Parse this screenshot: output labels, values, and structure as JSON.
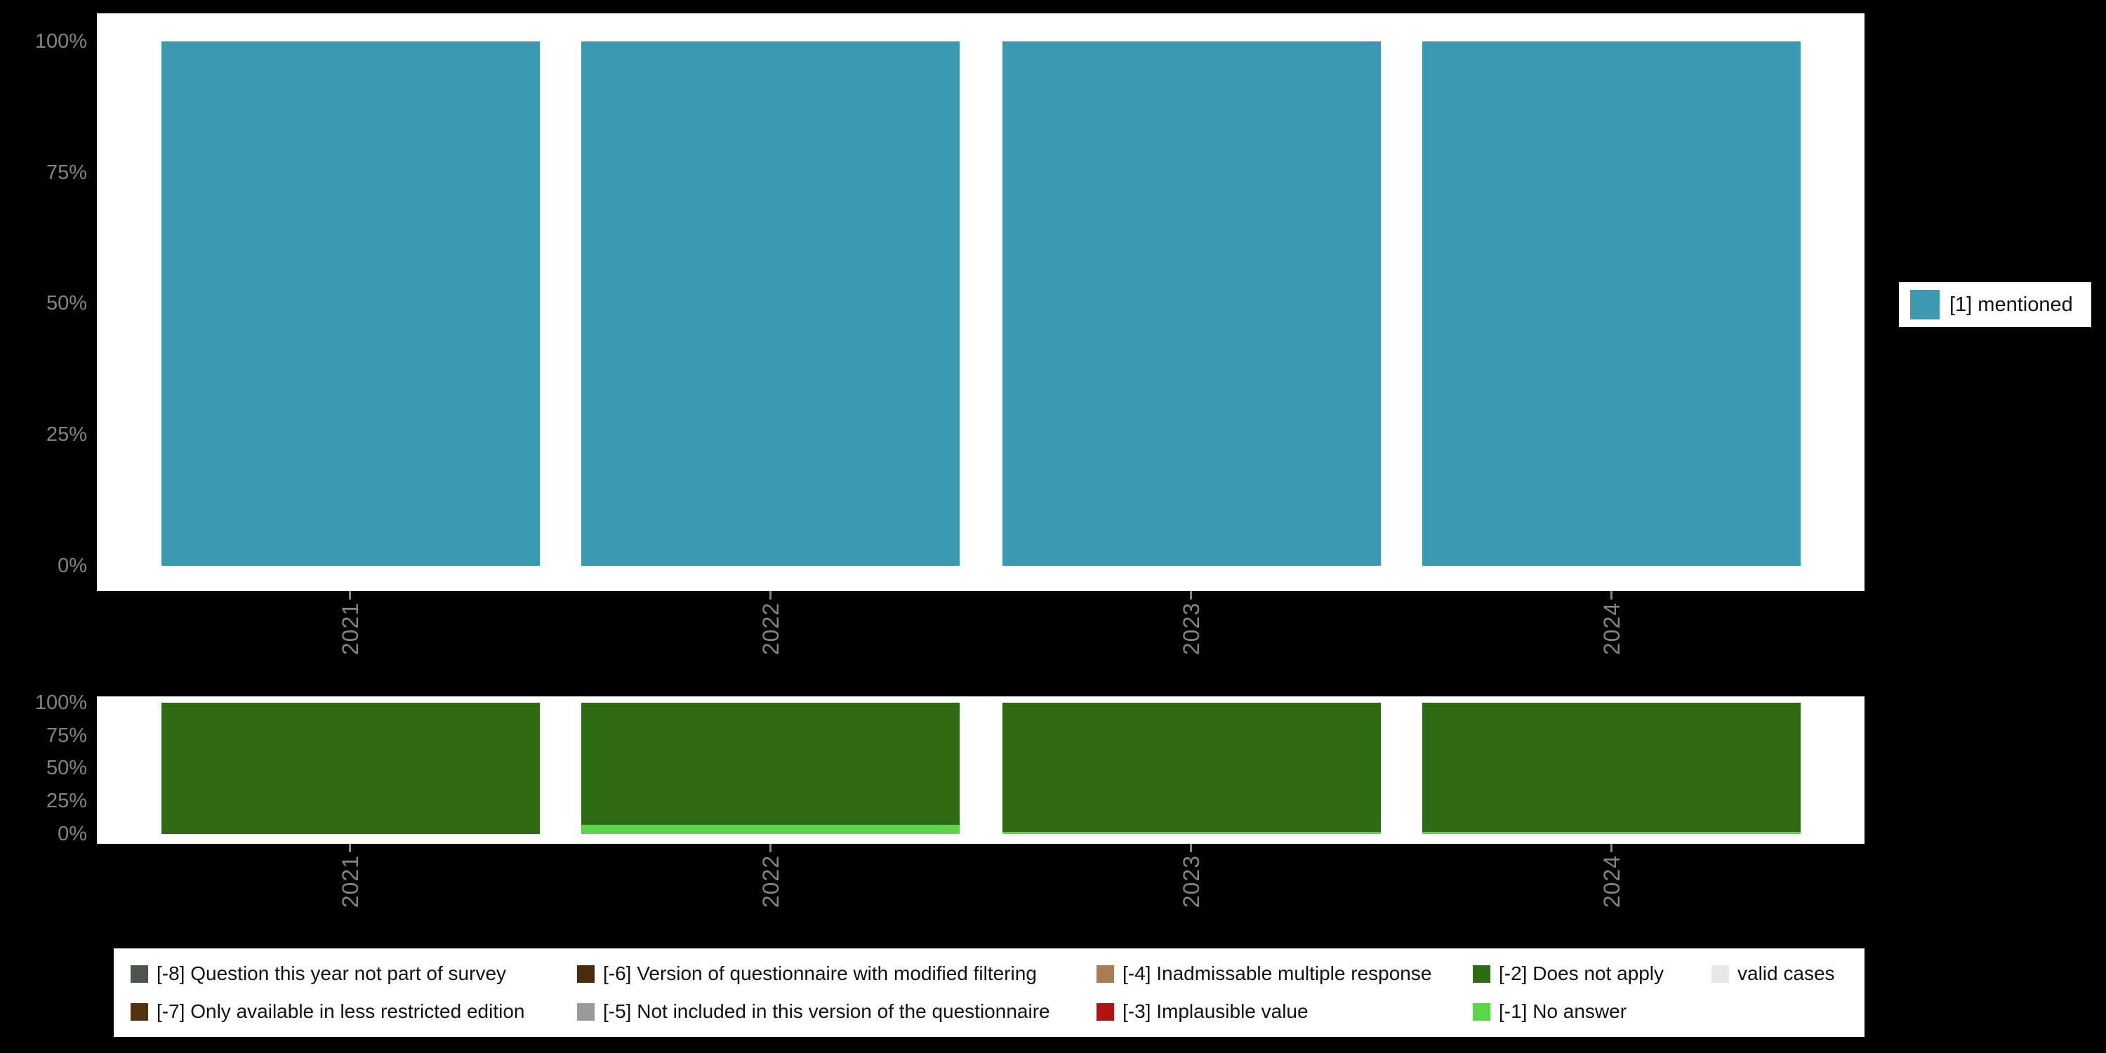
{
  "colors": {
    "page_background": "#000000",
    "panel_background": "#ffffff",
    "axis_text": "#848484",
    "legend_text": "#111111"
  },
  "chart_data": [
    {
      "type": "bar",
      "stacked": true,
      "title": "",
      "categories": [
        "2021",
        "2022",
        "2023",
        "2024"
      ],
      "series": [
        {
          "name": "[1] mentioned",
          "color": "#3b9ab1",
          "values": [
            100,
            100,
            100,
            100
          ]
        }
      ],
      "y_ticks": [
        "100%",
        "75%",
        "50%",
        "25%",
        "0%"
      ],
      "ylim": [
        0,
        100
      ],
      "grid": false,
      "legend_position": "right"
    },
    {
      "type": "bar",
      "stacked": true,
      "title": "",
      "categories": [
        "2021",
        "2022",
        "2023",
        "2024"
      ],
      "series": [
        {
          "name": "[-1] No answer",
          "color": "#5dd34b",
          "values": [
            0,
            7,
            1.5,
            1.5
          ]
        },
        {
          "name": "[-2] Does not apply",
          "color": "#2d6c12",
          "values": [
            100,
            93,
            98.5,
            98.5
          ]
        }
      ],
      "y_ticks": [
        "100%",
        "75%",
        "50%",
        "25%",
        "0%"
      ],
      "ylim": [
        0,
        100
      ],
      "grid": false,
      "legend_position": "bottom"
    }
  ],
  "top_legend": {
    "label": "[1] mentioned",
    "color": "#3b9ab1"
  },
  "missing_legend": {
    "rows": [
      [
        {
          "label": "[-8] Question this year not part of survey",
          "color": "#4d564d"
        },
        {
          "label": "[-6] Version of questionnaire with modified filtering",
          "color": "#4a2b0c"
        },
        {
          "label": "[-4] Inadmissable multiple response",
          "color": "#a97c56"
        },
        {
          "label": "[-2] Does not apply",
          "color": "#2d6c12"
        },
        {
          "label": "valid cases",
          "color": "#e8e8e6"
        }
      ],
      [
        {
          "label": "[-7] Only available in less restricted edition",
          "color": "#53330f"
        },
        {
          "label": "[-5] Not included in this version of the questionnaire",
          "color": "#9a9a9a"
        },
        {
          "label": "[-3] Implausible value",
          "color": "#b01216"
        },
        {
          "label": "[-1] No answer",
          "color": "#5dd34b"
        }
      ]
    ]
  }
}
